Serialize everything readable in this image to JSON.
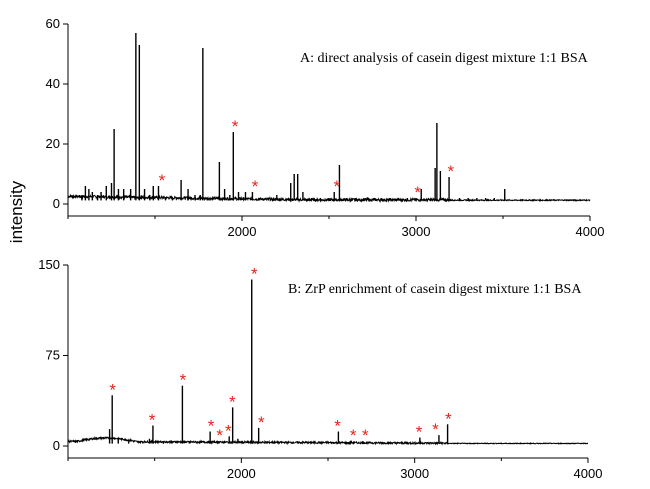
{
  "ylabel": "intensity",
  "chart_data": [
    {
      "type": "line",
      "xlim": [
        1000,
        4000
      ],
      "ylim": [
        0,
        60
      ],
      "xticks": [
        2000,
        3000,
        4000
      ],
      "yticks": [
        0,
        20,
        40,
        60
      ],
      "xlabel": "",
      "ylabel": "intensity",
      "annotation": "A: direct analysis of casein digest mixture 1:1 BSA",
      "baseline": 1.2,
      "peaks": [
        [
          1080,
          3
        ],
        [
          1100,
          6
        ],
        [
          1120,
          5
        ],
        [
          1140,
          4
        ],
        [
          1170,
          3
        ],
        [
          1190,
          4
        ],
        [
          1220,
          6
        ],
        [
          1250,
          7
        ],
        [
          1265,
          25
        ],
        [
          1290,
          5
        ],
        [
          1320,
          5
        ],
        [
          1360,
          5
        ],
        [
          1390,
          57
        ],
        [
          1410,
          53
        ],
        [
          1440,
          5
        ],
        [
          1470,
          3
        ],
        [
          1490,
          6
        ],
        [
          1520,
          6
        ],
        [
          1560,
          2
        ],
        [
          1600,
          2
        ],
        [
          1650,
          8
        ],
        [
          1690,
          5
        ],
        [
          1730,
          3
        ],
        [
          1760,
          3
        ],
        [
          1775,
          52
        ],
        [
          1800,
          2
        ],
        [
          1830,
          2
        ],
        [
          1870,
          14
        ],
        [
          1900,
          5
        ],
        [
          1930,
          3
        ],
        [
          1950,
          24
        ],
        [
          1980,
          4
        ],
        [
          2020,
          4
        ],
        [
          2060,
          4
        ],
        [
          2100,
          2
        ],
        [
          2150,
          2
        ],
        [
          2200,
          3
        ],
        [
          2230,
          2
        ],
        [
          2280,
          7
        ],
        [
          2300,
          10
        ],
        [
          2320,
          10
        ],
        [
          2350,
          4
        ],
        [
          2400,
          2
        ],
        [
          2450,
          2
        ],
        [
          2500,
          2
        ],
        [
          2530,
          4
        ],
        [
          2560,
          13
        ],
        [
          2600,
          2
        ],
        [
          2650,
          2
        ],
        [
          2700,
          2
        ],
        [
          2760,
          2
        ],
        [
          2800,
          2
        ],
        [
          2850,
          2
        ],
        [
          2900,
          2
        ],
        [
          2950,
          2
        ],
        [
          3000,
          2
        ],
        [
          3030,
          5
        ],
        [
          3110,
          12
        ],
        [
          3120,
          27
        ],
        [
          3140,
          11
        ],
        [
          3190,
          9
        ],
        [
          3250,
          2
        ],
        [
          3300,
          2
        ],
        [
          3350,
          2
        ],
        [
          3400,
          2
        ],
        [
          3450,
          2
        ],
        [
          3510,
          5
        ]
      ],
      "stars": [
        1540,
        1960,
        2075,
        2545,
        3010,
        3200
      ]
    },
    {
      "type": "line",
      "xlim": [
        1000,
        4000
      ],
      "ylim": [
        0,
        150
      ],
      "xticks": [
        2000,
        3000,
        4000
      ],
      "yticks": [
        0,
        75,
        150
      ],
      "xlabel": "",
      "ylabel": "intensity",
      "annotation": "B: ZrP enrichment of casein digest mixture 1:1 BSA",
      "baseline": 2,
      "peaks": [
        [
          1240,
          14
        ],
        [
          1255,
          42
        ],
        [
          1290,
          6
        ],
        [
          1350,
          4
        ],
        [
          1470,
          6
        ],
        [
          1490,
          17
        ],
        [
          1550,
          4
        ],
        [
          1600,
          4
        ],
        [
          1660,
          50
        ],
        [
          1700,
          4
        ],
        [
          1760,
          4
        ],
        [
          1820,
          12
        ],
        [
          1870,
          4
        ],
        [
          1900,
          4
        ],
        [
          1930,
          8
        ],
        [
          1950,
          32
        ],
        [
          1980,
          6
        ],
        [
          2060,
          138
        ],
        [
          2100,
          15
        ],
        [
          2150,
          4
        ],
        [
          2300,
          3
        ],
        [
          2400,
          3
        ],
        [
          2560,
          12
        ],
        [
          2650,
          4
        ],
        [
          2700,
          4
        ],
        [
          2750,
          3
        ],
        [
          2900,
          3
        ],
        [
          3030,
          7
        ],
        [
          3140,
          9
        ],
        [
          3190,
          18
        ],
        [
          3300,
          2
        ],
        [
          3500,
          2
        ]
      ],
      "stars": [
        1258,
        1485,
        1663,
        1825,
        1875,
        1925,
        1948,
        2075,
        2115,
        2555,
        2645,
        2715,
        3025,
        3120,
        3195
      ]
    }
  ]
}
